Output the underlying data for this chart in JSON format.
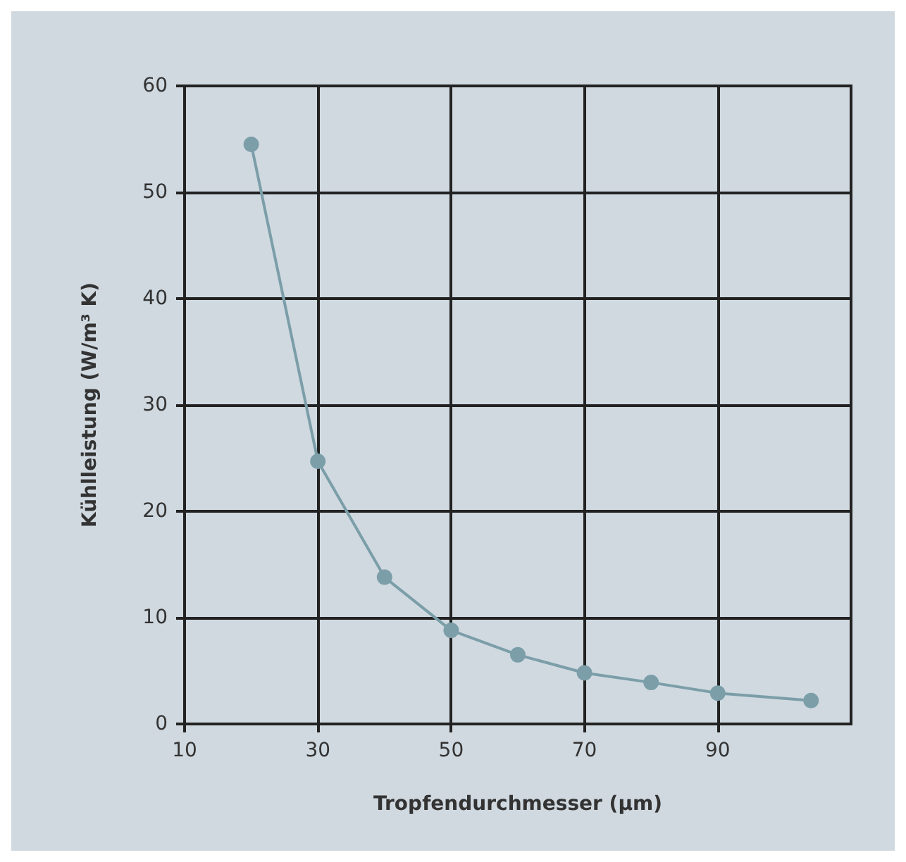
{
  "chart_data": {
    "type": "line",
    "xlabel": "Tropfendurchmesser (µm)",
    "ylabel": "Kühlleistung (W/m³ K)",
    "x": [
      20,
      30,
      40,
      50,
      60,
      70,
      80,
      90,
      104
    ],
    "series": [
      {
        "color": "#7b9ea8",
        "values": [
          54.5,
          24.7,
          13.8,
          8.8,
          6.5,
          4.8,
          3.9,
          2.9,
          2.2
        ]
      }
    ],
    "xlim": [
      10,
      110
    ],
    "xticks": [
      10,
      30,
      50,
      70,
      90
    ],
    "ylim": [
      0,
      60
    ],
    "yticks": [
      0,
      10,
      20,
      30,
      40,
      50,
      60
    ],
    "grid": true,
    "marker": "circle",
    "line_style": "solid"
  }
}
